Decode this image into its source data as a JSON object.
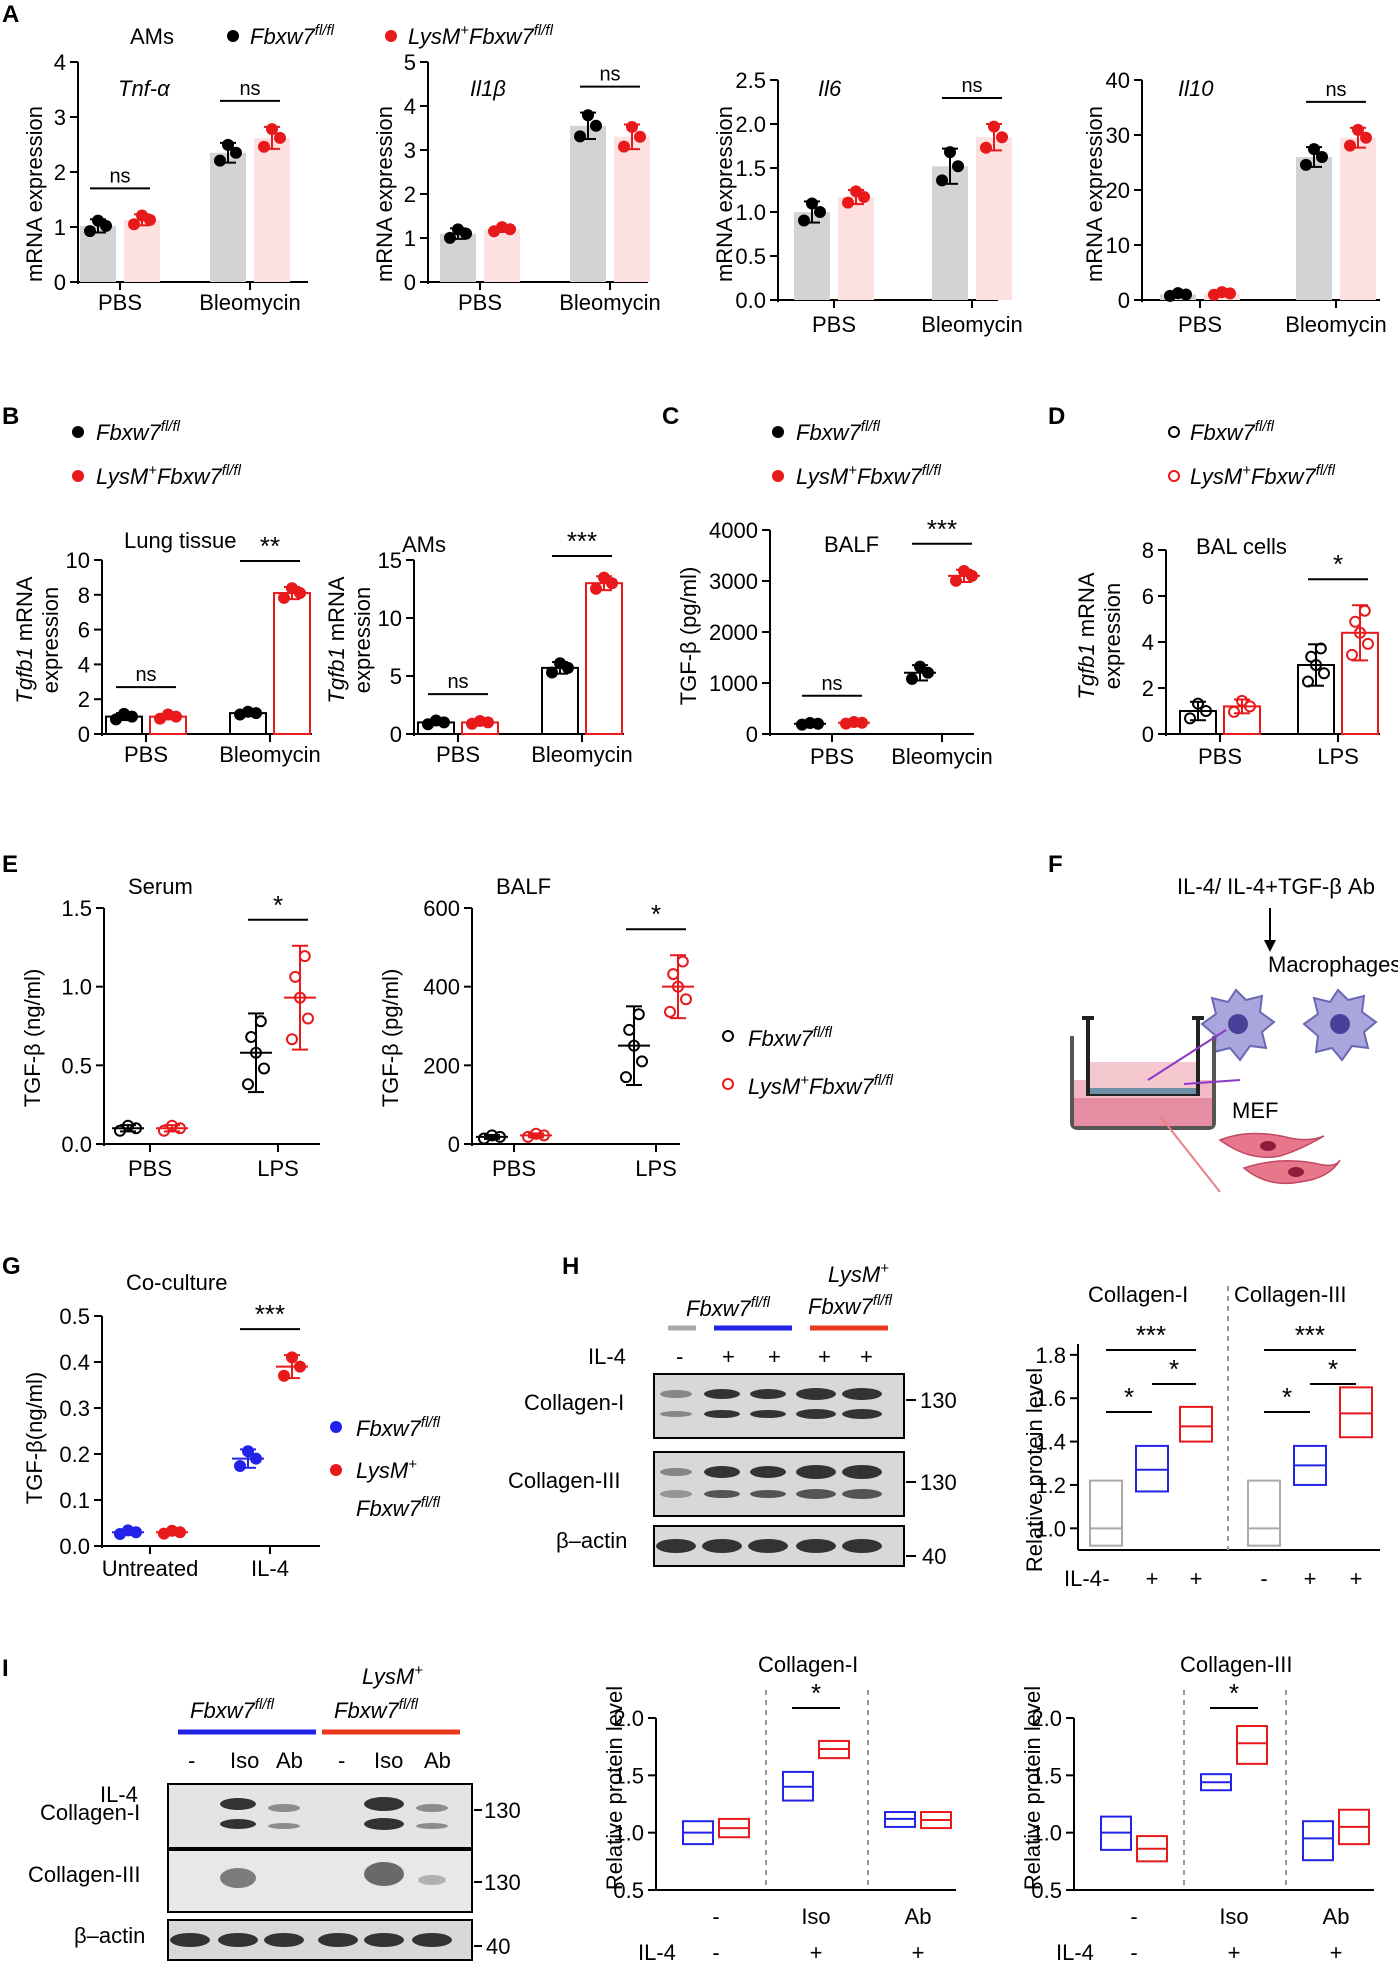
{
  "colors": {
    "black": "#000000",
    "red": "#e8191b",
    "blue": "#2323e8",
    "gray": "#a9a9a9",
    "lightgray": "#d3d3d3",
    "pink": "#fde0e0"
  },
  "panel_letters": [
    "A",
    "B",
    "C",
    "D",
    "E",
    "F",
    "G",
    "H",
    "I"
  ],
  "genotypes": {
    "ctrl": "Fbxw7",
    "ctrl_sup": "fl/fl",
    "mut_pre": "LysM",
    "mut_pre_sup": "+",
    "mut": "Fbxw7",
    "mut_sup": "fl/fl"
  },
  "common": {
    "pbs": "PBS",
    "bleo": "Bleomycin",
    "lps": "LPS",
    "ns": "ns",
    "mrna_ylabel": "mRNA expression",
    "tgfb1_ylabel_gene": "Tgfb1",
    "tgfb1_ylabel_rest": " mRNA",
    "tgfb1_ylabel_2": "expression",
    "il4": "IL-4",
    "untreated": "Untreated",
    "minus": "-",
    "plus": "+",
    "iso": "Iso",
    "ab": "Ab",
    "rel_protein": "Relative protein level",
    "collagen1": "Collagen-I",
    "collagen3": "Collagen-III",
    "bactin": "β–actin",
    "mw130": "130",
    "mw40": "40"
  },
  "panelA": {
    "label": "AMs"
  },
  "panelB": {
    "title1": "Lung tissue",
    "title2": "AMs"
  },
  "panelC": {
    "title": "BALF",
    "ylabel": "TGF-β (pg/ml)"
  },
  "panelD": {
    "title": "BAL cells"
  },
  "panelE": {
    "title1": "Serum",
    "title2": "BALF",
    "ylabel1": "TGF-β (ng/ml)",
    "ylabel2": "TGF-β (pg/ml)"
  },
  "panelF": {
    "treatment": "IL-4/ IL-4+TGF-β Ab",
    "macrophages": "Macrophages",
    "mef": "MEF"
  },
  "panelG": {
    "title": "Co-culture",
    "ylabel": "TGF-β(ng/ml)"
  },
  "chart_data": [
    {
      "id": "A1",
      "type": "bar",
      "title": "Tnf-α",
      "categories": [
        "PBS",
        "Bleomycin"
      ],
      "ylabel": "mRNA expression",
      "ylim": [
        0,
        4
      ],
      "yticks": [
        0,
        1,
        2,
        3,
        4
      ],
      "series": [
        {
          "name": "Fbxw7fl/fl",
          "values": [
            1.02,
            2.35
          ],
          "err": [
            0.12,
            0.18
          ]
        },
        {
          "name": "LysM+Fbxw7fl/fl",
          "values": [
            1.13,
            2.62
          ],
          "err": [
            0.1,
            0.2
          ]
        }
      ],
      "significance": [
        "ns",
        "ns"
      ]
    },
    {
      "id": "A2",
      "type": "bar",
      "title": "Il1β",
      "categories": [
        "PBS",
        "Bleomycin"
      ],
      "ylabel": "mRNA expression",
      "ylim": [
        0,
        5
      ],
      "yticks": [
        0,
        1,
        2,
        3,
        4,
        5
      ],
      "series": [
        {
          "name": "Fbxw7fl/fl",
          "values": [
            1.1,
            3.55
          ],
          "err": [
            0.12,
            0.3
          ]
        },
        {
          "name": "LysM+Fbxw7fl/fl",
          "values": [
            1.2,
            3.3
          ],
          "err": [
            0.06,
            0.28
          ]
        }
      ],
      "significance": [
        "",
        "ns"
      ]
    },
    {
      "id": "A3",
      "type": "bar",
      "title": "Il6",
      "categories": [
        "PBS",
        "Bleomycin"
      ],
      "ylabel": "mRNA expression",
      "ylim": [
        0,
        2.5
      ],
      "yticks": [
        0,
        0.5,
        1.0,
        1.5,
        2.0,
        2.5
      ],
      "series": [
        {
          "name": "Fbxw7fl/fl",
          "values": [
            1.0,
            1.52
          ],
          "err": [
            0.12,
            0.2
          ]
        },
        {
          "name": "LysM+Fbxw7fl/fl",
          "values": [
            1.17,
            1.85
          ],
          "err": [
            0.08,
            0.15
          ]
        }
      ],
      "significance": [
        "",
        "ns"
      ]
    },
    {
      "id": "A4",
      "type": "bar",
      "title": "Il10",
      "categories": [
        "PBS",
        "Bleomycin"
      ],
      "ylabel": "mRNA expression",
      "ylim": [
        0,
        40
      ],
      "yticks": [
        0,
        10,
        20,
        30,
        40
      ],
      "series": [
        {
          "name": "Fbxw7fl/fl",
          "values": [
            1.0,
            26
          ],
          "err": [
            0.3,
            1.8
          ]
        },
        {
          "name": "LysM+Fbxw7fl/fl",
          "values": [
            1.2,
            29.5
          ],
          "err": [
            0.3,
            1.8
          ]
        }
      ],
      "significance": [
        "",
        "ns"
      ]
    },
    {
      "id": "B1",
      "type": "bar",
      "title": "Lung tissue",
      "categories": [
        "PBS",
        "Bleomycin"
      ],
      "ylim": [
        0,
        10
      ],
      "yticks": [
        0,
        2,
        4,
        6,
        8,
        10
      ],
      "series": [
        {
          "name": "Fbxw7fl/fl",
          "values": [
            1.0,
            1.2
          ],
          "err": [
            0.2,
            0.1
          ]
        },
        {
          "name": "LysM+Fbxw7fl/fl",
          "values": [
            1.0,
            8.1
          ],
          "err": [
            0.15,
            0.35
          ]
        }
      ],
      "significance": [
        "ns",
        "**"
      ]
    },
    {
      "id": "B2",
      "type": "bar",
      "title": "AMs",
      "categories": [
        "PBS",
        "Bleomycin"
      ],
      "ylim": [
        0,
        15
      ],
      "yticks": [
        0,
        5,
        10,
        15
      ],
      "series": [
        {
          "name": "Fbxw7fl/fl",
          "values": [
            1.0,
            5.7
          ],
          "err": [
            0.2,
            0.5
          ]
        },
        {
          "name": "LysM+Fbxw7fl/fl",
          "values": [
            1.0,
            13.0
          ],
          "err": [
            0.15,
            0.6
          ]
        }
      ],
      "significance": [
        "ns",
        "***"
      ]
    },
    {
      "id": "C",
      "type": "scatter",
      "title": "BALF",
      "categories": [
        "PBS",
        "Bleomycin"
      ],
      "ylabel": "TGF-β (pg/ml)",
      "ylim": [
        0,
        4000
      ],
      "yticks": [
        0,
        1000,
        2000,
        3000,
        4000
      ],
      "series": [
        {
          "name": "Fbxw7fl/fl",
          "values": [
            200,
            1200
          ],
          "err": [
            20,
            150
          ]
        },
        {
          "name": "LysM+Fbxw7fl/fl",
          "values": [
            220,
            3100
          ],
          "err": [
            20,
            120
          ]
        }
      ],
      "significance": [
        "ns",
        "***"
      ]
    },
    {
      "id": "D",
      "type": "bar",
      "title": "BAL cells",
      "categories": [
        "PBS",
        "LPS"
      ],
      "ylim": [
        0,
        8
      ],
      "yticks": [
        0,
        2,
        4,
        6,
        8
      ],
      "series": [
        {
          "name": "Fbxw7fl/fl",
          "values": [
            1.0,
            3.0
          ],
          "err": [
            0.4,
            0.9
          ]
        },
        {
          "name": "LysM+Fbxw7fl/fl",
          "values": [
            1.2,
            4.4
          ],
          "err": [
            0.3,
            1.2
          ]
        }
      ],
      "significance": [
        "",
        "*"
      ]
    },
    {
      "id": "E1",
      "type": "scatter",
      "title": "Serum",
      "categories": [
        "PBS",
        "LPS"
      ],
      "ylabel": "TGF-β (ng/ml)",
      "ylim": [
        0,
        1.5
      ],
      "yticks": [
        0.0,
        0.5,
        1.0,
        1.5
      ],
      "series": [
        {
          "name": "Fbxw7fl/fl",
          "values": [
            0.1,
            0.58
          ],
          "err": [
            0.02,
            0.25
          ]
        },
        {
          "name": "LysM+Fbxw7fl/fl",
          "values": [
            0.1,
            0.93
          ],
          "err": [
            0.02,
            0.33
          ]
        }
      ],
      "significance": [
        "",
        "*"
      ]
    },
    {
      "id": "E2",
      "type": "scatter",
      "title": "BALF",
      "categories": [
        "PBS",
        "LPS"
      ],
      "ylabel": "TGF-β (pg/ml)",
      "ylim": [
        0,
        600
      ],
      "yticks": [
        0,
        200,
        400,
        600
      ],
      "series": [
        {
          "name": "Fbxw7fl/fl",
          "values": [
            18,
            250
          ],
          "err": [
            5,
            100
          ]
        },
        {
          "name": "LysM+Fbxw7fl/fl",
          "values": [
            22,
            400
          ],
          "err": [
            5,
            80
          ]
        }
      ],
      "significance": [
        "",
        "*"
      ]
    },
    {
      "id": "G",
      "type": "scatter",
      "title": "Co-culture",
      "categories": [
        "Untreated",
        "IL-4"
      ],
      "ylabel": "TGF-β(ng/ml)",
      "ylim": [
        0,
        0.5
      ],
      "yticks": [
        0.0,
        0.1,
        0.2,
        0.3,
        0.4,
        0.5
      ],
      "series": [
        {
          "name": "Fbxw7fl/fl",
          "values": [
            0.03,
            0.19
          ],
          "err": [
            0.005,
            0.02
          ]
        },
        {
          "name": "LysM+Fbxw7fl/fl",
          "values": [
            0.03,
            0.39
          ],
          "err": [
            0.004,
            0.025
          ]
        }
      ],
      "significance": [
        "",
        "***"
      ]
    },
    {
      "id": "H",
      "type": "box",
      "ylabel": "Relative protein level",
      "ylim": [
        0.9,
        1.85
      ],
      "yticks": [
        1.0,
        1.2,
        1.4,
        1.6,
        1.8
      ],
      "groups": [
        {
          "title": "Collagen-I",
          "boxes": [
            {
              "color": "gray",
              "low": 0.92,
              "mid": 1.0,
              "high": 1.22
            },
            {
              "color": "blue",
              "low": 1.17,
              "mid": 1.27,
              "high": 1.38
            },
            {
              "color": "red",
              "low": 1.4,
              "mid": 1.47,
              "high": 1.56
            }
          ]
        },
        {
          "title": "Collagen-III",
          "boxes": [
            {
              "color": "gray",
              "low": 0.92,
              "mid": 1.0,
              "high": 1.22
            },
            {
              "color": "blue",
              "low": 1.2,
              "mid": 1.29,
              "high": 1.38
            },
            {
              "color": "red",
              "low": 1.42,
              "mid": 1.53,
              "high": 1.65
            }
          ]
        }
      ],
      "il4": [
        "-",
        "+",
        "+"
      ]
    },
    {
      "id": "I1",
      "type": "box",
      "title": "Collagen-I",
      "ylabel": "Relative protein level",
      "ylim": [
        0.5,
        2.0
      ],
      "yticks": [
        0.5,
        1.0,
        1.5,
        2.0
      ],
      "groups": [
        {
          "label": "-",
          "boxes": [
            {
              "color": "blue",
              "low": 0.9,
              "mid": 1.0,
              "high": 1.1
            },
            {
              "color": "red",
              "low": 0.96,
              "mid": 1.04,
              "high": 1.12
            }
          ]
        },
        {
          "label": "Iso",
          "boxes": [
            {
              "color": "blue",
              "low": 1.28,
              "mid": 1.4,
              "high": 1.53
            },
            {
              "color": "red",
              "low": 1.65,
              "mid": 1.73,
              "high": 1.8
            }
          ]
        },
        {
          "label": "Ab",
          "boxes": [
            {
              "color": "blue",
              "low": 1.05,
              "mid": 1.12,
              "high": 1.18
            },
            {
              "color": "red",
              "low": 1.04,
              "mid": 1.11,
              "high": 1.18
            }
          ]
        }
      ],
      "il4": [
        "-",
        "+",
        "+"
      ]
    },
    {
      "id": "I2",
      "type": "box",
      "title": "Collagen-III",
      "ylabel": "Relative protein level",
      "ylim": [
        0.5,
        2.0
      ],
      "yticks": [
        0.5,
        1.0,
        1.5,
        2.0
      ],
      "groups": [
        {
          "label": "-",
          "boxes": [
            {
              "color": "blue",
              "low": 0.85,
              "mid": 1.0,
              "high": 1.14
            },
            {
              "color": "red",
              "low": 0.75,
              "mid": 0.86,
              "high": 0.97
            }
          ]
        },
        {
          "label": "Iso",
          "boxes": [
            {
              "color": "blue",
              "low": 1.37,
              "mid": 1.44,
              "high": 1.51
            },
            {
              "color": "red",
              "low": 1.6,
              "mid": 1.78,
              "high": 1.93
            }
          ]
        },
        {
          "label": "Ab",
          "boxes": [
            {
              "color": "blue",
              "low": 0.76,
              "mid": 0.95,
              "high": 1.1
            },
            {
              "color": "red",
              "low": 0.9,
              "mid": 1.05,
              "high": 1.2
            }
          ]
        }
      ],
      "il4": [
        "-",
        "+",
        "+"
      ]
    }
  ]
}
